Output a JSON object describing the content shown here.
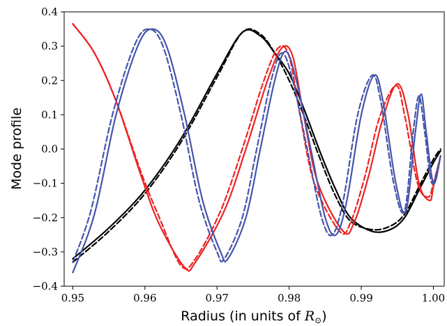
{
  "chart_data": {
    "type": "line",
    "title": "",
    "xlabel_text": "Radius (in units of ",
    "xlabel_math": "R",
    "xlabel_sub": "⊙",
    "xlabel_close": ")",
    "ylabel": "Mode profile",
    "xlim": [
      0.9488,
      1.0015
    ],
    "ylim": [
      -0.4,
      0.4
    ],
    "xticks": [
      0.95,
      0.96,
      0.97,
      0.98,
      0.99,
      1.0
    ],
    "xtick_labels": [
      "0.95",
      "0.96",
      "0.97",
      "0.98",
      "0.99",
      "1.00"
    ],
    "yticks": [
      -0.4,
      -0.3,
      -0.2,
      -0.1,
      0.0,
      0.1,
      0.2,
      0.3,
      0.4
    ],
    "ytick_labels": [
      "−0.4",
      "−0.3",
      "−0.2",
      "−0.1",
      "0.0",
      "0.1",
      "0.2",
      "0.3",
      "0.4"
    ],
    "grid": false,
    "series": [
      {
        "color": "#000000",
        "dash": false,
        "points": [
          [
            0.95,
            -0.32
          ],
          [
            0.955,
            -0.23
          ],
          [
            0.96,
            -0.12
          ],
          [
            0.965,
            0.03
          ],
          [
            0.97,
            0.22
          ],
          [
            0.9735,
            0.34
          ],
          [
            0.976,
            0.33
          ],
          [
            0.978,
            0.28
          ],
          [
            0.98,
            0.22
          ],
          [
            0.982,
            0.12
          ],
          [
            0.9845,
            -0.02
          ],
          [
            0.9865,
            -0.12
          ],
          [
            0.9885,
            -0.2
          ],
          [
            0.9915,
            -0.24
          ],
          [
            0.994,
            -0.235
          ],
          [
            0.996,
            -0.2
          ],
          [
            0.998,
            -0.12
          ],
          [
            1.0,
            -0.04
          ],
          [
            1.001,
            -0.005
          ]
        ]
      },
      {
        "color": "#000000",
        "dash": true,
        "points": [
          [
            0.95,
            -0.33
          ],
          [
            0.955,
            -0.24
          ],
          [
            0.96,
            -0.13
          ],
          [
            0.965,
            0.02
          ],
          [
            0.97,
            0.21
          ],
          [
            0.9735,
            0.34
          ],
          [
            0.976,
            0.335
          ],
          [
            0.978,
            0.28
          ],
          [
            0.98,
            0.2
          ],
          [
            0.982,
            0.1
          ],
          [
            0.9845,
            -0.04
          ],
          [
            0.9865,
            -0.14
          ],
          [
            0.9885,
            -0.21
          ],
          [
            0.9915,
            -0.235
          ],
          [
            0.994,
            -0.225
          ],
          [
            0.996,
            -0.19
          ],
          [
            0.998,
            -0.11
          ],
          [
            1.0,
            -0.03
          ],
          [
            1.001,
            0.0
          ]
        ]
      },
      {
        "color": "#ee2222",
        "dash": false,
        "points": [
          [
            0.95,
            0.365
          ],
          [
            0.953,
            0.28
          ],
          [
            0.956,
            0.14
          ],
          [
            0.9595,
            -0.08
          ],
          [
            0.962,
            -0.22
          ],
          [
            0.9655,
            -0.345
          ],
          [
            0.967,
            -0.33
          ],
          [
            0.971,
            -0.18
          ],
          [
            0.974,
            0.0
          ],
          [
            0.977,
            0.2
          ],
          [
            0.979,
            0.295
          ],
          [
            0.9805,
            0.27
          ],
          [
            0.982,
            0.1
          ],
          [
            0.984,
            -0.1
          ],
          [
            0.9875,
            -0.24
          ],
          [
            0.989,
            -0.215
          ],
          [
            0.991,
            -0.08
          ],
          [
            0.993,
            0.09
          ],
          [
            0.995,
            0.19
          ],
          [
            0.9965,
            0.1
          ],
          [
            0.998,
            -0.1
          ],
          [
            0.9995,
            -0.15
          ],
          [
            1.0,
            -0.11
          ],
          [
            1.001,
            -0.02
          ]
        ]
      },
      {
        "color": "#ee2222",
        "dash": true,
        "points": [
          [
            0.95,
            0.365
          ],
          [
            0.953,
            0.28
          ],
          [
            0.956,
            0.14
          ],
          [
            0.9595,
            -0.07
          ],
          [
            0.962,
            -0.2
          ],
          [
            0.965,
            -0.34
          ],
          [
            0.967,
            -0.32
          ],
          [
            0.9705,
            -0.18
          ],
          [
            0.9735,
            0.0
          ],
          [
            0.9765,
            0.2
          ],
          [
            0.9785,
            0.295
          ],
          [
            0.98,
            0.27
          ],
          [
            0.9815,
            0.1
          ],
          [
            0.9835,
            -0.1
          ],
          [
            0.987,
            -0.24
          ],
          [
            0.9885,
            -0.215
          ],
          [
            0.9905,
            -0.08
          ],
          [
            0.9925,
            0.09
          ],
          [
            0.9948,
            0.185
          ],
          [
            0.996,
            0.1
          ],
          [
            0.9978,
            -0.1
          ],
          [
            0.9993,
            -0.14
          ],
          [
            1.0,
            -0.1
          ],
          [
            1.001,
            -0.02
          ]
        ]
      },
      {
        "color": "#4455aa",
        "dash": false,
        "points": [
          [
            0.95,
            -0.36
          ],
          [
            0.953,
            -0.19
          ],
          [
            0.956,
            0.1
          ],
          [
            0.959,
            0.3
          ],
          [
            0.961,
            0.35
          ],
          [
            0.963,
            0.3
          ],
          [
            0.9655,
            0.1
          ],
          [
            0.968,
            -0.15
          ],
          [
            0.9705,
            -0.3
          ],
          [
            0.9715,
            -0.32
          ],
          [
            0.974,
            -0.2
          ],
          [
            0.976,
            0.0
          ],
          [
            0.978,
            0.2
          ],
          [
            0.9795,
            0.285
          ],
          [
            0.981,
            0.2
          ],
          [
            0.983,
            0.0
          ],
          [
            0.985,
            -0.2
          ],
          [
            0.9865,
            -0.25
          ],
          [
            0.988,
            -0.15
          ],
          [
            0.99,
            0.1
          ],
          [
            0.9918,
            0.215
          ],
          [
            0.993,
            0.14
          ],
          [
            0.9948,
            -0.1
          ],
          [
            0.9962,
            -0.18
          ],
          [
            0.9975,
            0.05
          ],
          [
            0.9983,
            0.16
          ],
          [
            0.999,
            0.05
          ],
          [
            1.0,
            -0.1
          ],
          [
            1.001,
            -0.02
          ]
        ]
      },
      {
        "color": "#4455aa",
        "dash": true,
        "points": [
          [
            0.95,
            -0.33
          ],
          [
            0.9525,
            -0.18
          ],
          [
            0.9555,
            0.1
          ],
          [
            0.9585,
            0.3
          ],
          [
            0.9605,
            0.35
          ],
          [
            0.9625,
            0.3
          ],
          [
            0.965,
            0.1
          ],
          [
            0.9675,
            -0.15
          ],
          [
            0.97,
            -0.3
          ],
          [
            0.971,
            -0.32
          ],
          [
            0.9735,
            -0.2
          ],
          [
            0.9755,
            0.0
          ],
          [
            0.9775,
            0.2
          ],
          [
            0.979,
            0.28
          ],
          [
            0.9805,
            0.2
          ],
          [
            0.9825,
            0.0
          ],
          [
            0.9845,
            -0.2
          ],
          [
            0.986,
            -0.25
          ],
          [
            0.9875,
            -0.15
          ],
          [
            0.9895,
            0.1
          ],
          [
            0.9915,
            0.215
          ],
          [
            0.9927,
            0.14
          ],
          [
            0.9945,
            -0.1
          ],
          [
            0.996,
            -0.18
          ],
          [
            0.9972,
            0.05
          ],
          [
            0.998,
            0.155
          ],
          [
            0.9988,
            0.05
          ],
          [
            0.9998,
            -0.1
          ],
          [
            1.001,
            -0.02
          ]
        ]
      }
    ]
  }
}
